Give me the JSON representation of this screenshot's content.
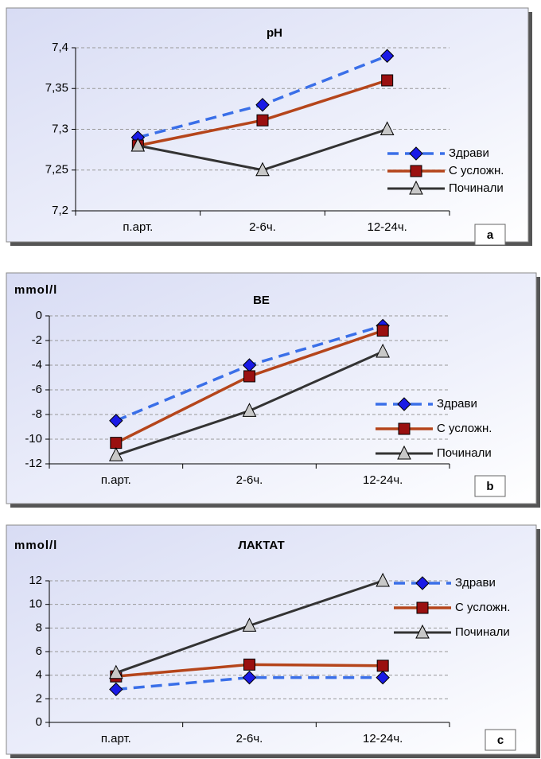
{
  "chart_data": [
    {
      "type": "line",
      "title": "pH",
      "panel_label": "a",
      "categories": [
        "п.арт.",
        "2-6ч.",
        " 12-24ч."
      ],
      "ylim": [
        7.2,
        7.4
      ],
      "yticks": [
        {
          "value": 7.2,
          "label": "7,2"
        },
        {
          "value": 7.25,
          "label": "7,25"
        },
        {
          "value": 7.3,
          "label": "7,3"
        },
        {
          "value": 7.35,
          "label": "7,35"
        },
        {
          "value": 7.4,
          "label": "7,4"
        }
      ],
      "grid": true,
      "series": [
        {
          "name": "Здрави",
          "color": "#3a6fe8",
          "values": [
            7.29,
            7.33,
            7.39
          ]
        },
        {
          "name": "С усложн.",
          "color": "#b5451b",
          "values": [
            7.28,
            7.311,
            7.36
          ]
        },
        {
          "name": "Починали",
          "color": "#333333",
          "values": [
            7.28,
            7.25,
            7.3
          ]
        }
      ]
    },
    {
      "type": "line",
      "title": "BE",
      "y_label": "mmol/l",
      "panel_label": "b",
      "categories": [
        "п.арт.",
        "2-6ч.",
        "12-24ч."
      ],
      "ylim": [
        -12,
        0
      ],
      "yticks": [
        -12,
        -10,
        -8,
        -6,
        -4,
        -2,
        0
      ],
      "grid": true,
      "series": [
        {
          "name": "Здрави",
          "color": "#3a6fe8",
          "values": [
            -8.5,
            -4,
            -0.8
          ]
        },
        {
          "name": "С усложн.",
          "color": "#b5451b",
          "values": [
            -10.3,
            -4.9,
            -1.2
          ]
        },
        {
          "name": "Починали",
          "color": "#333333",
          "values": [
            -11.3,
            -7.7,
            -2.9
          ]
        }
      ]
    },
    {
      "type": "line",
      "title": "ЛАКТАТ",
      "y_label": "mmol/l",
      "panel_label": "c",
      "categories": [
        "п.арт.",
        "2-6ч.",
        "12-24ч."
      ],
      "ylim": [
        0,
        12
      ],
      "yticks": [
        0,
        2,
        4,
        6,
        8,
        10,
        12
      ],
      "grid": true,
      "series": [
        {
          "name": "Здрави",
          "color": "#3a6fe8",
          "values": [
            2.8,
            3.8,
            3.8
          ]
        },
        {
          "name": "С усложн.",
          "color": "#b5451b",
          "values": [
            3.9,
            4.9,
            4.8
          ]
        },
        {
          "name": "Починали",
          "color": "#333333",
          "values": [
            4.2,
            8.2,
            12
          ]
        }
      ]
    }
  ]
}
